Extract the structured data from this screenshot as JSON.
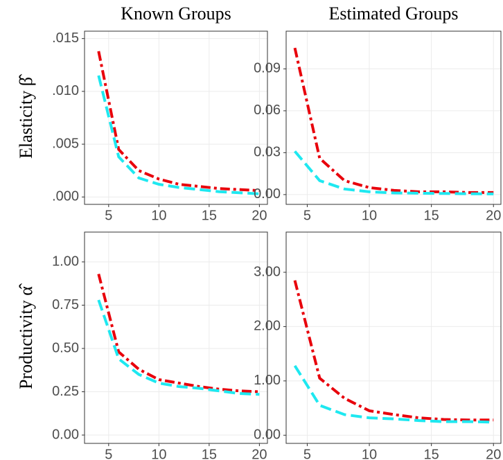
{
  "chart_data": [
    {
      "type": "line",
      "title": "Known Groups",
      "ylabel": "Elasticity β̂",
      "x": [
        4,
        6,
        8,
        10,
        12,
        14,
        16,
        18,
        20
      ],
      "series": [
        {
          "color": "#e8000b",
          "linestyle": "dashdot",
          "values": [
            0.0138,
            0.0045,
            0.0025,
            0.0017,
            0.0012,
            0.001,
            0.0008,
            0.0007,
            0.0006
          ]
        },
        {
          "color": "#1ee8f0",
          "linestyle": "dashed",
          "values": [
            0.0115,
            0.0038,
            0.0018,
            0.0012,
            0.0009,
            0.0007,
            0.0005,
            0.0004,
            0.0003
          ]
        }
      ],
      "xlim": [
        2.6,
        20.8
      ],
      "xticks": [
        5,
        10,
        15,
        20
      ],
      "ylim": [
        -0.0007,
        0.0157
      ],
      "yticks": [
        {
          "value": 0,
          "label": ".000"
        },
        {
          "value": 0.005,
          "label": ".005"
        },
        {
          "value": 0.01,
          "label": ".010"
        },
        {
          "value": 0.015,
          "label": ".015"
        }
      ],
      "grid": true
    },
    {
      "type": "line",
      "title": "Estimated Groups",
      "x": [
        4,
        6,
        8,
        10,
        12,
        14,
        16,
        18,
        20
      ],
      "series": [
        {
          "color": "#e8000b",
          "linestyle": "dashdot",
          "values": [
            0.105,
            0.026,
            0.01,
            0.005,
            0.003,
            0.002,
            0.002,
            0.0015,
            0.0015
          ]
        },
        {
          "color": "#1ee8f0",
          "linestyle": "dashed",
          "values": [
            0.031,
            0.01,
            0.004,
            0.002,
            0.0012,
            0.001,
            0.0008,
            0.0006,
            0.0005
          ]
        }
      ],
      "xlim": [
        3.3,
        20.6
      ],
      "xticks": [
        5,
        10,
        15,
        20
      ],
      "ylim": [
        -0.007,
        0.117
      ],
      "yticks": [
        {
          "value": 0,
          "label": "0.00"
        },
        0.03,
        0.06,
        0.09
      ],
      "grid": true
    },
    {
      "type": "line",
      "ylabel": "Productivity α̂",
      "x": [
        4,
        6,
        8,
        10,
        12,
        14,
        16,
        18,
        20
      ],
      "series": [
        {
          "color": "#e8000b",
          "linestyle": "dashdot",
          "values": [
            0.93,
            0.48,
            0.38,
            0.32,
            0.3,
            0.28,
            0.265,
            0.255,
            0.25
          ]
        },
        {
          "color": "#1ee8f0",
          "linestyle": "dashed",
          "values": [
            0.78,
            0.44,
            0.35,
            0.3,
            0.28,
            0.27,
            0.255,
            0.24,
            0.235
          ]
        }
      ],
      "xlim": [
        2.6,
        20.8
      ],
      "xticks": [
        5,
        10,
        15,
        20
      ],
      "ylim": [
        -0.048,
        1.172
      ],
      "yticks": [
        {
          "value": 0,
          "label": "0.00"
        },
        0.25,
        {
          "value": 0.5,
          "label": "0.50"
        },
        0.75,
        {
          "value": 1,
          "label": "1.00"
        }
      ],
      "grid": true
    },
    {
      "type": "line",
      "x": [
        4,
        6,
        8,
        10,
        12,
        14,
        16,
        18,
        20
      ],
      "series": [
        {
          "color": "#e8000b",
          "linestyle": "dashdot",
          "values": [
            2.85,
            1.05,
            0.68,
            0.45,
            0.38,
            0.32,
            0.29,
            0.28,
            0.28
          ]
        },
        {
          "color": "#1ee8f0",
          "linestyle": "dashed",
          "values": [
            1.28,
            0.55,
            0.38,
            0.32,
            0.3,
            0.27,
            0.25,
            0.25,
            0.24
          ]
        }
      ],
      "xlim": [
        3.3,
        20.6
      ],
      "xticks": [
        5,
        10,
        15,
        20
      ],
      "ylim": [
        -0.15,
        3.74
      ],
      "yticks": [
        {
          "value": 0,
          "label": "0.00"
        },
        {
          "value": 1,
          "label": "1.00"
        },
        {
          "value": 2,
          "label": "2.00"
        },
        {
          "value": 3,
          "label": "3.00"
        }
      ],
      "grid": true
    }
  ]
}
